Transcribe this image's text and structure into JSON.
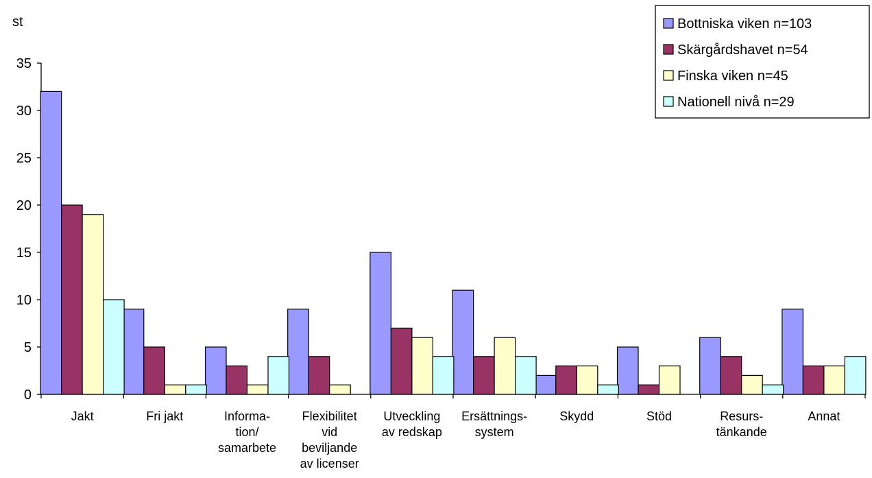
{
  "chart_data": {
    "type": "bar",
    "ylabel": "st",
    "ylim": [
      0,
      35
    ],
    "yticks": [
      0,
      5,
      10,
      15,
      20,
      25,
      30,
      35
    ],
    "grid": false,
    "legend": "top-right",
    "categories": [
      [
        "Jakt"
      ],
      [
        "Fri jakt"
      ],
      [
        "Informa-",
        "tion/",
        "samarbete"
      ],
      [
        "Flexibilitet",
        "vid",
        "beviljande",
        "av licenser"
      ],
      [
        "Utveckling",
        "av redskap"
      ],
      [
        "Ersättnings-",
        "system"
      ],
      [
        "Skydd"
      ],
      [
        "Stöd"
      ],
      [
        "Resurs-",
        "tänkande"
      ],
      [
        "Annat"
      ]
    ],
    "series": [
      {
        "name": "Bottniska viken n=103",
        "color": "#9999ff",
        "values": [
          32,
          9,
          5,
          9,
          15,
          11,
          2,
          5,
          6,
          9
        ]
      },
      {
        "name": "Skärgårdshavet n=54",
        "color": "#993366",
        "values": [
          20,
          5,
          3,
          4,
          7,
          4,
          3,
          1,
          4,
          3
        ]
      },
      {
        "name": "Finska viken n=45",
        "color": "#ffffcc",
        "values": [
          19,
          1,
          1,
          1,
          6,
          6,
          3,
          3,
          2,
          3
        ]
      },
      {
        "name": "Nationell nivå n=29",
        "color": "#ccffff",
        "values": [
          10,
          1,
          4,
          0,
          4,
          4,
          1,
          0,
          1,
          4
        ]
      }
    ]
  }
}
